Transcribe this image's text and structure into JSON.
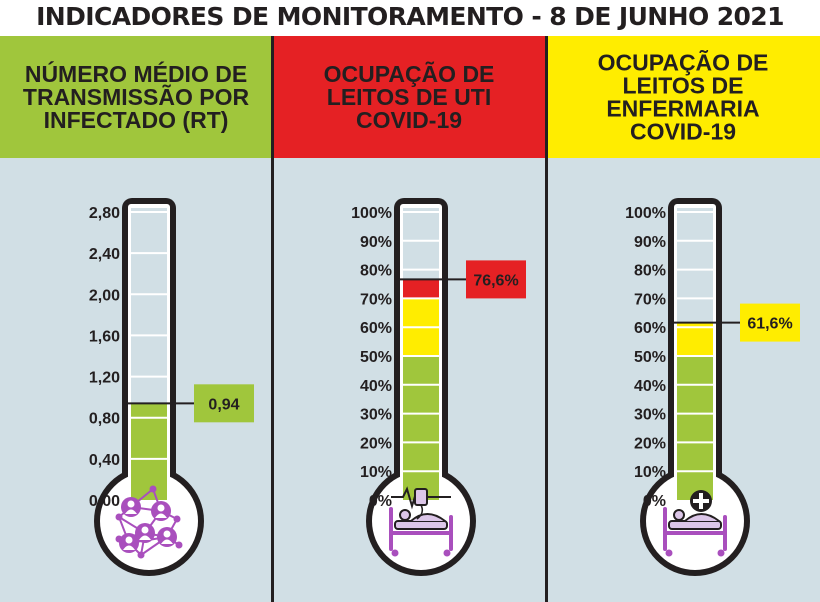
{
  "title": "INDICADORES DE MONITORAMENTO - 8 DE JUNHO 2021",
  "chart_data": {
    "type": "thermometer",
    "colors": {
      "background": "#d1dfe5",
      "divider": "#231f20",
      "green": "#a0c63c",
      "yellow": "#ffed00",
      "red": "#e52124",
      "icon_purple": "#a94fbd",
      "icon_light_purple": "#dcc6e8"
    },
    "panels": [
      {
        "id": "rt",
        "title_lines": [
          "NÚMERO MÉDIO DE",
          "TRANSMISSÃO POR",
          "INFECTADO (RT)"
        ],
        "header_color": "#a0c63c",
        "ticks": [
          "2,80",
          "2,40",
          "2,00",
          "1,60",
          "1,20",
          "0,80",
          "0,40",
          "0,00"
        ],
        "scale_min": 0,
        "scale_max": 2.8,
        "value": 0.94,
        "value_label": "0,94",
        "value_badge_color": "#a0c63c",
        "fill_bands": [
          {
            "from": 0,
            "to": 0.94,
            "color": "#a0c63c"
          }
        ],
        "icon": "people-network-icon"
      },
      {
        "id": "uti",
        "title_lines": [
          "OCUPAÇÃO DE",
          "LEITOS DE UTI",
          "COVID-19"
        ],
        "header_color": "#e52124",
        "ticks": [
          "100%",
          "90%",
          "80%",
          "70%",
          "60%",
          "50%",
          "40%",
          "30%",
          "20%",
          "10%",
          "0%"
        ],
        "scale_min": 0,
        "scale_max": 100,
        "value": 76.6,
        "value_label": "76,6%",
        "value_badge_color": "#e52124",
        "fill_bands": [
          {
            "from": 0,
            "to": 50,
            "color": "#a0c63c"
          },
          {
            "from": 50,
            "to": 70,
            "color": "#ffed00"
          },
          {
            "from": 70,
            "to": 76.6,
            "color": "#e52124"
          }
        ],
        "icon": "icu-bed-heart-monitor-icon"
      },
      {
        "id": "enfermaria",
        "title_lines": [
          "OCUPAÇÃO DE",
          "LEITOS DE",
          "ENFERMARIA",
          "COVID-19"
        ],
        "header_color": "#ffed00",
        "ticks": [
          "100%",
          "90%",
          "80%",
          "70%",
          "60%",
          "50%",
          "40%",
          "30%",
          "20%",
          "10%",
          "0%"
        ],
        "scale_min": 0,
        "scale_max": 100,
        "value": 61.6,
        "value_label": "61,6%",
        "value_badge_color": "#ffed00",
        "fill_bands": [
          {
            "from": 0,
            "to": 50,
            "color": "#a0c63c"
          },
          {
            "from": 50,
            "to": 61.6,
            "color": "#ffed00"
          }
        ],
        "icon": "hospital-bed-cross-icon"
      }
    ]
  }
}
